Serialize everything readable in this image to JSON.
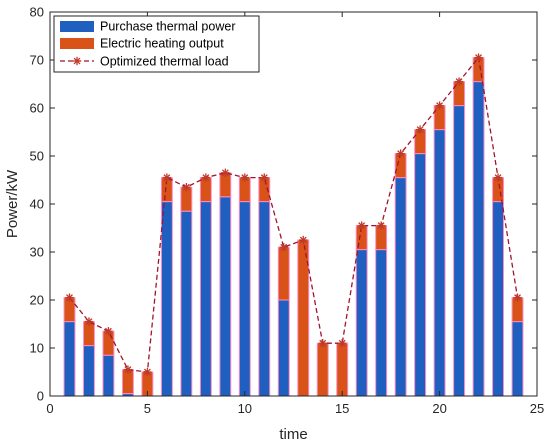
{
  "chart_data": {
    "type": "bar",
    "stacked": true,
    "xlabel": "time",
    "ylabel": "Power/kW",
    "xlim": [
      0,
      25
    ],
    "ylim": [
      0,
      80
    ],
    "xticks": [
      0,
      5,
      10,
      15,
      20,
      25
    ],
    "yticks": [
      0,
      10,
      20,
      30,
      40,
      50,
      60,
      70,
      80
    ],
    "grid": false,
    "legend_position": "top-left",
    "x": [
      1,
      2,
      3,
      4,
      5,
      6,
      7,
      8,
      9,
      10,
      11,
      12,
      13,
      14,
      15,
      16,
      17,
      18,
      19,
      20,
      21,
      22,
      23,
      24
    ],
    "series": [
      {
        "name": "Purchase thermal power",
        "kind": "bar",
        "color": "#1f5fbf",
        "values": [
          15.5,
          10.5,
          8.5,
          0.5,
          0,
          40.5,
          38.5,
          40.5,
          41.5,
          40.5,
          40.5,
          20,
          0,
          0,
          0,
          30.5,
          30.5,
          45.5,
          50.5,
          55.5,
          60.5,
          65.5,
          40.5,
          15.5
        ]
      },
      {
        "name": "Electric heating output",
        "kind": "bar",
        "color": "#d95319",
        "values": [
          5,
          5,
          5,
          5,
          5,
          5,
          5,
          5,
          5,
          5,
          5,
          11,
          32.5,
          11,
          11,
          5,
          5,
          5,
          5,
          5,
          5,
          5,
          5,
          5
        ]
      },
      {
        "name": "Optimized thermal load",
        "kind": "line",
        "color": "#a2142f",
        "values": [
          20.5,
          15.5,
          13.5,
          5.5,
          5,
          45.5,
          43.5,
          45.5,
          46.5,
          45.5,
          45.5,
          31,
          32.5,
          11,
          11,
          35.5,
          35.5,
          50.5,
          55.5,
          60.5,
          65.5,
          70.5,
          45.5,
          20.5
        ]
      }
    ],
    "colors": {
      "bar_edge": "#ff8cc8",
      "marker": "#c0392b",
      "axis": "#262626"
    }
  }
}
